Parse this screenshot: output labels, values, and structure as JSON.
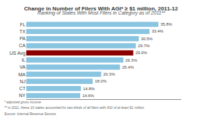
{
  "chart_data": {
    "type": "bar",
    "orientation": "horizontal",
    "title": "Change in Number of Filers With AGI* ≥ $1 million, 2011-12",
    "subtitle": "Ranking of States With Most Filers in Category as of 2011**",
    "categories": [
      "NY",
      "CT",
      "NJ",
      "MA",
      "VA",
      "IL",
      "US Avg",
      "CA",
      "PA",
      "TX",
      "FL"
    ],
    "values": [
      14.6,
      14.8,
      18.0,
      20.3,
      25.4,
      26.3,
      29.0,
      29.7,
      30.5,
      33.4,
      35.8
    ],
    "value_labels": [
      "14.6%",
      "14.8%",
      "18.0%",
      "20.3%",
      "25.4%",
      "26.3%",
      "29.0%",
      "29.7%",
      "30.5%",
      "33.4%",
      "35.8%"
    ],
    "data_labels": true,
    "colors": [
      "#89c4e1",
      "#89c4e1",
      "#89c4e1",
      "#89c4e1",
      "#89c4e1",
      "#89c4e1",
      "#8b0000",
      "#89c4e1",
      "#89c4e1",
      "#89c4e1",
      "#89c4e1"
    ],
    "xlim": [
      0,
      42
    ],
    "tick_labels": "y",
    "grid": false,
    "annotations": [
      "* adjusted gross income",
      "** in 2011, these 10 states accounted for two-thirds of all filers with AGI of at least $1 million",
      "Source: Internal Revenue Service"
    ]
  }
}
